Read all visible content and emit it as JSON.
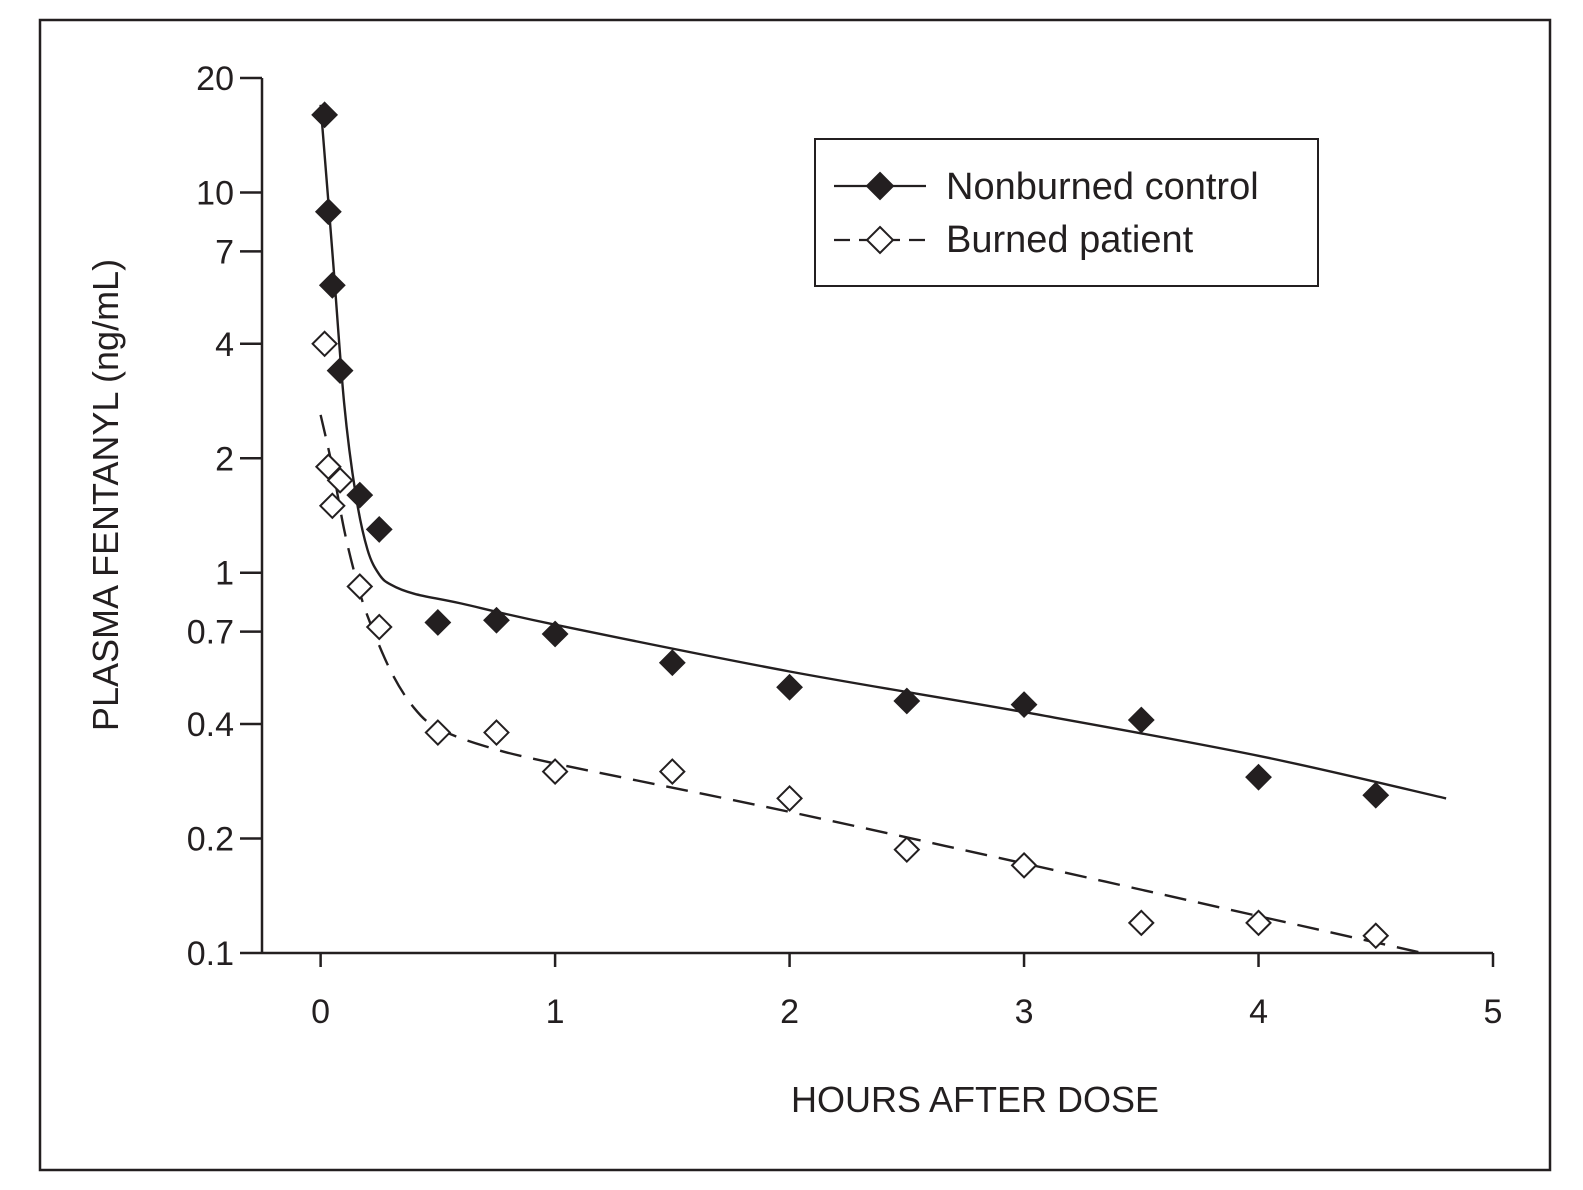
{
  "chart_data": {
    "type": "scatter",
    "title": "",
    "xlabel": "HOURS AFTER DOSE",
    "ylabel": "PLASMA FENTANYL (ng/mL)",
    "x_scale": "linear",
    "y_scale": "log",
    "xlim": [
      -0.25,
      5
    ],
    "ylim": [
      0.1,
      20
    ],
    "x_ticks": [
      0,
      1,
      2,
      3,
      4,
      5
    ],
    "x_tick_labels": [
      "0",
      "1",
      "2",
      "3",
      "4",
      "5"
    ],
    "y_ticks": [
      0.1,
      0.2,
      0.4,
      0.7,
      1,
      2,
      4,
      7,
      10,
      20
    ],
    "y_tick_labels": [
      "0.1",
      "0.2",
      "0.4",
      "0.7",
      "1",
      "2",
      "4",
      "7",
      "10",
      "20"
    ],
    "grid": false,
    "legend_position": "top-right",
    "series": [
      {
        "name": "Nonburned control",
        "marker": "filled-diamond",
        "line_style": "solid",
        "color": "#231f20",
        "points": [
          [
            0.017,
            16
          ],
          [
            0.033,
            8.9
          ],
          [
            0.05,
            5.7
          ],
          [
            0.083,
            3.4
          ],
          [
            0.167,
            1.6
          ],
          [
            0.25,
            1.3
          ],
          [
            0.5,
            0.74
          ],
          [
            0.75,
            0.75
          ],
          [
            1.0,
            0.69
          ],
          [
            1.5,
            0.58
          ],
          [
            2.0,
            0.5
          ],
          [
            2.5,
            0.46
          ],
          [
            3.0,
            0.45
          ],
          [
            3.5,
            0.41
          ],
          [
            4.0,
            0.29
          ],
          [
            4.5,
            0.26
          ]
        ],
        "fit": [
          [
            0.0,
            17
          ],
          [
            0.05,
            7.0
          ],
          [
            0.1,
            2.8
          ],
          [
            0.15,
            1.6
          ],
          [
            0.2,
            1.15
          ],
          [
            0.25,
            0.99
          ],
          [
            0.3,
            0.93
          ],
          [
            0.4,
            0.88
          ],
          [
            0.6,
            0.83
          ],
          [
            1.0,
            0.73
          ],
          [
            2.0,
            0.55
          ],
          [
            3.0,
            0.43
          ],
          [
            4.0,
            0.33
          ],
          [
            4.8,
            0.255
          ]
        ]
      },
      {
        "name": "Burned patient",
        "marker": "open-diamond",
        "line_style": "dashed",
        "color": "#231f20",
        "points": [
          [
            0.017,
            4.0
          ],
          [
            0.033,
            1.9
          ],
          [
            0.05,
            1.5
          ],
          [
            0.083,
            1.75
          ],
          [
            0.167,
            0.92
          ],
          [
            0.25,
            0.72
          ],
          [
            0.5,
            0.38
          ],
          [
            0.75,
            0.38
          ],
          [
            1.0,
            0.3
          ],
          [
            1.5,
            0.3
          ],
          [
            2.0,
            0.255
          ],
          [
            2.5,
            0.187
          ],
          [
            3.0,
            0.17
          ],
          [
            3.5,
            0.12
          ],
          [
            4.0,
            0.12
          ],
          [
            4.5,
            0.111
          ]
        ],
        "fit": [
          [
            0.0,
            2.6
          ],
          [
            0.05,
            1.9
          ],
          [
            0.1,
            1.3
          ],
          [
            0.15,
            0.97
          ],
          [
            0.2,
            0.77
          ],
          [
            0.3,
            0.55
          ],
          [
            0.4,
            0.44
          ],
          [
            0.5,
            0.39
          ],
          [
            0.7,
            0.35
          ],
          [
            1.0,
            0.315
          ],
          [
            2.0,
            0.235
          ],
          [
            3.0,
            0.172
          ],
          [
            4.0,
            0.125
          ],
          [
            4.7,
            0.1
          ]
        ]
      }
    ]
  }
}
